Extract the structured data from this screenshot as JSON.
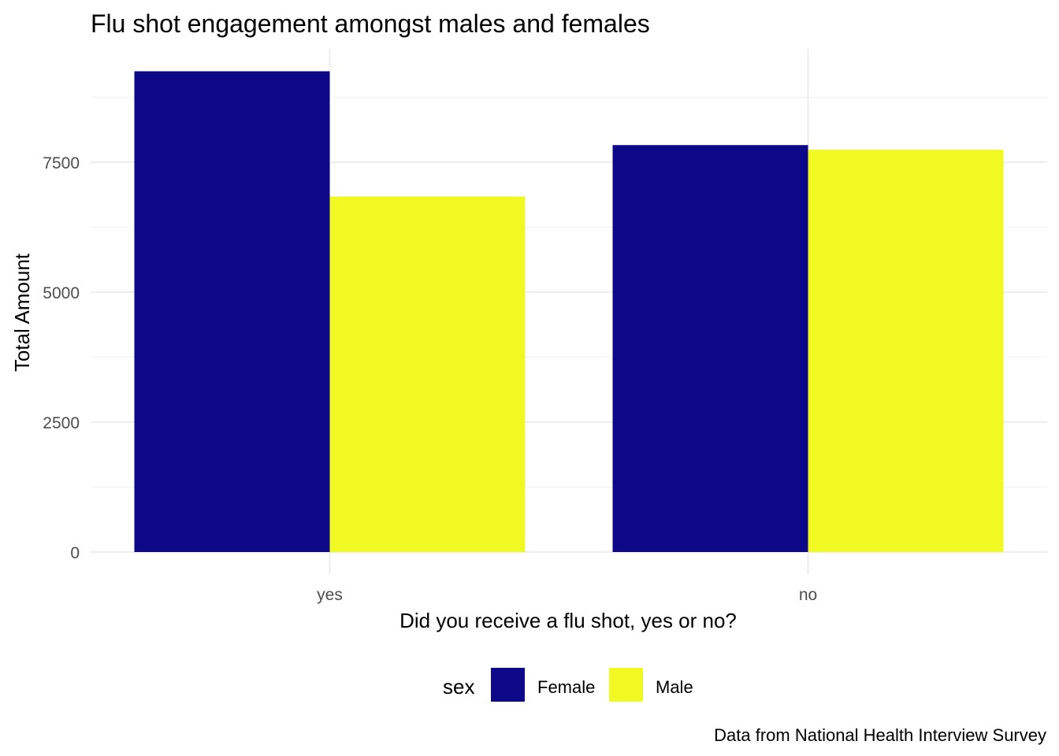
{
  "chart_data": {
    "type": "bar",
    "title": "Flu shot engagement amongst males and females",
    "xlabel": "Did you receive a flu shot, yes or no?",
    "ylabel": "Total Amount",
    "caption": "Data from National Health Interview Survey",
    "categories": [
      "yes",
      "no"
    ],
    "series": [
      {
        "name": "Female",
        "color": "#0D0887",
        "values": [
          9250,
          7830
        ]
      },
      {
        "name": "Male",
        "color": "#F0F921",
        "values": [
          6840,
          7740
        ]
      }
    ],
    "ylim": [
      0,
      9700
    ],
    "yticks": [
      0,
      2500,
      5000,
      7500
    ],
    "ytick_labels": [
      "0",
      "2500",
      "5000",
      "7500"
    ],
    "grid": true,
    "legend_title": "sex",
    "legend_position": "bottom"
  }
}
